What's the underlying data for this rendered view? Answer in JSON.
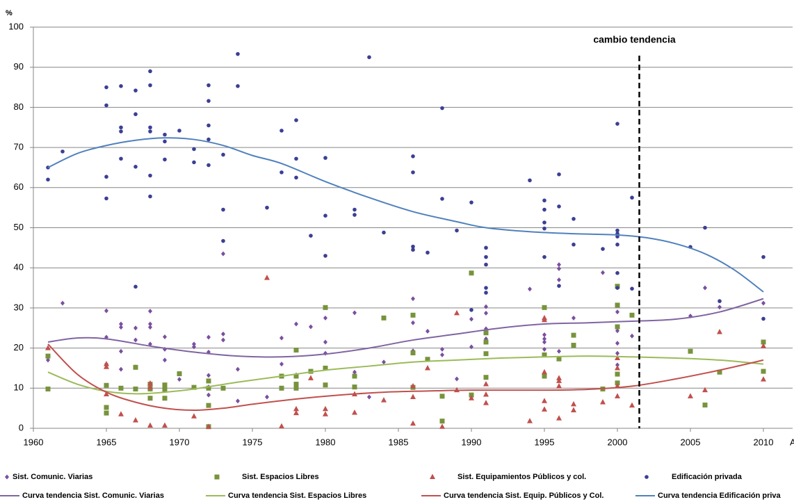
{
  "chart_data": {
    "type": "scatter",
    "ylabel": "%",
    "xlabel": "A",
    "xlim": [
      1960,
      2012
    ],
    "ylim": [
      0,
      100
    ],
    "xticks": [
      1960,
      1965,
      1970,
      1975,
      1980,
      1985,
      1990,
      1995,
      2000,
      2005,
      2010
    ],
    "yticks": [
      0,
      10,
      20,
      30,
      40,
      50,
      60,
      70,
      80,
      90,
      100
    ],
    "grid": true,
    "legend": "bottom",
    "annotation": {
      "text": "cambio tendencia",
      "x": 2001.5
    },
    "series": [
      {
        "name": "Sist. Comunic. Viarias",
        "kind": "scatter",
        "marker": "diamond",
        "color": "#7a4f9e",
        "x": [
          1961,
          1962,
          1965,
          1965,
          1965,
          1966,
          1966,
          1966,
          1966,
          1967,
          1967,
          1967,
          1968,
          1968,
          1968,
          1968,
          1969,
          1969,
          1969,
          1970,
          1971,
          1971,
          1972,
          1972,
          1972,
          1972,
          1972,
          1973,
          1973,
          1973,
          1974,
          1974,
          1976,
          1977,
          1977,
          1978,
          1978,
          1979,
          1980,
          1980,
          1980,
          1982,
          1982,
          1983,
          1984,
          1986,
          1986,
          1986,
          1986,
          1987,
          1988,
          1988,
          1989,
          1990,
          1990,
          1991,
          1991,
          1991,
          1991,
          1994,
          1995,
          1995,
          1995,
          1995,
          1996,
          1996,
          1996,
          1996,
          1997,
          1999,
          2000,
          2000,
          2000,
          2000,
          2000,
          2001,
          2005,
          2006,
          2007,
          2010
        ],
        "values": [
          17,
          31.2,
          29.3,
          22.7,
          16,
          25.2,
          26,
          19.2,
          14.7,
          25,
          22,
          15.3,
          29.2,
          26,
          25.2,
          21,
          22.8,
          19.7,
          17,
          12.2,
          21,
          20.3,
          22.7,
          19,
          13.2,
          10.3,
          8.3,
          23.5,
          22,
          43.5,
          14.7,
          6.8,
          7.8,
          22.5,
          16,
          26,
          13.3,
          25.3,
          27.5,
          21.5,
          18.7,
          28.8,
          14,
          7.8,
          16.5,
          32.3,
          26.3,
          19.3,
          10.5,
          24.2,
          19.7,
          18.3,
          12.3,
          27.2,
          20.3,
          30.3,
          28.7,
          24.8,
          22.3,
          34.7,
          23.3,
          22.3,
          21.5,
          19.7,
          40.8,
          39.8,
          37,
          19.2,
          27.5,
          38.8,
          29,
          24.3,
          21.2,
          18.7,
          15.8,
          23,
          28,
          35,
          30.2,
          31.2
        ]
      },
      {
        "name": "Sist. Espacios Libres",
        "kind": "scatter",
        "marker": "square",
        "color": "#77933c",
        "x": [
          1961,
          1961,
          1965,
          1965,
          1965,
          1966,
          1967,
          1967,
          1968,
          1968,
          1968,
          1969,
          1969,
          1969,
          1970,
          1971,
          1972,
          1972,
          1972,
          1972,
          1973,
          1977,
          1977,
          1978,
          1978,
          1978,
          1978,
          1979,
          1980,
          1980,
          1980,
          1982,
          1982,
          1984,
          1986,
          1986,
          1986,
          1987,
          1988,
          1988,
          1990,
          1990,
          1991,
          1991,
          1991,
          1991,
          1995,
          1995,
          1995,
          1996,
          1997,
          1997,
          1999,
          2000,
          2000,
          2000,
          2000,
          2000,
          2001,
          2005,
          2006,
          2007,
          2010,
          2010
        ],
        "values": [
          18,
          9.8,
          10.7,
          5.2,
          3.8,
          10,
          15.2,
          9.8,
          11,
          9.8,
          7.5,
          10.8,
          9.7,
          7.5,
          13.6,
          10.2,
          11.8,
          10,
          5.7,
          0.4,
          10,
          13,
          10,
          19.5,
          13,
          11,
          10,
          14.2,
          30.1,
          15,
          10.8,
          13,
          10.3,
          27.5,
          28.2,
          18.8,
          10.2,
          17.2,
          8,
          1.8,
          38.7,
          8.3,
          23.8,
          21.5,
          18.6,
          12.7,
          30.1,
          18.3,
          13,
          17.3,
          23.2,
          20.7,
          9.8,
          35.4,
          30.7,
          25.3,
          13.5,
          11.3,
          28.2,
          19.2,
          5.8,
          14,
          21.5,
          14.2
        ]
      },
      {
        "name": "Sist. Equipamientos Públicos y col.",
        "kind": "scatter",
        "marker": "triangle",
        "color": "#c0504d",
        "x": [
          1961,
          1965,
          1965,
          1965,
          1966,
          1967,
          1968,
          1968,
          1968,
          1969,
          1971,
          1972,
          1976,
          1977,
          1978,
          1978,
          1979,
          1980,
          1980,
          1982,
          1982,
          1984,
          1986,
          1986,
          1986,
          1987,
          1988,
          1989,
          1989,
          1990,
          1991,
          1991,
          1991,
          1994,
          1995,
          1995,
          1995,
          1995,
          1995,
          1996,
          1996,
          1996,
          1996,
          1997,
          1997,
          1999,
          2000,
          2000,
          2000,
          2000,
          2001,
          2005,
          2006,
          2007,
          2010,
          2010
        ],
        "values": [
          20,
          16,
          15.3,
          8.5,
          3.5,
          2,
          11.2,
          10.2,
          0.7,
          0.7,
          3,
          0.4,
          37.5,
          0.5,
          4.8,
          3.8,
          12.5,
          4.8,
          3.5,
          8.5,
          3.9,
          7,
          10.5,
          7.8,
          1.2,
          15,
          0.4,
          28.7,
          9.5,
          7.5,
          11,
          8.4,
          6.3,
          1.8,
          27.5,
          27,
          14,
          6.8,
          4.7,
          12.5,
          11.8,
          10.5,
          2.5,
          6,
          4.5,
          6.5,
          17.5,
          15,
          10.5,
          8,
          5.7,
          8,
          9.5,
          24,
          20.5,
          12.2
        ]
      },
      {
        "name": "Edificación privada",
        "kind": "scatter",
        "marker": "circle",
        "color": "#3b3f94",
        "x": [
          1961,
          1961,
          1962,
          1965,
          1965,
          1965,
          1965,
          1966,
          1966,
          1966,
          1966,
          1967,
          1967,
          1967,
          1967,
          1968,
          1968,
          1968,
          1968,
          1968,
          1968,
          1969,
          1969,
          1969,
          1970,
          1971,
          1971,
          1972,
          1972,
          1972,
          1972,
          1972,
          1973,
          1973,
          1973,
          1974,
          1974,
          1976,
          1977,
          1977,
          1978,
          1978,
          1978,
          1979,
          1980,
          1980,
          1980,
          1982,
          1982,
          1983,
          1984,
          1986,
          1986,
          1986,
          1986,
          1987,
          1988,
          1988,
          1989,
          1990,
          1990,
          1991,
          1991,
          1991,
          1991,
          1991,
          1994,
          1995,
          1995,
          1995,
          1995,
          1995,
          1996,
          1996,
          1996,
          1997,
          1997,
          1999,
          2000,
          2000,
          2000,
          2000,
          2000,
          2000,
          2000,
          2001,
          2001,
          2005,
          2006,
          2007,
          2010,
          2010
        ],
        "values": [
          65,
          62,
          69,
          85,
          80.5,
          62.7,
          57.3,
          85.3,
          75,
          74,
          67.2,
          84.2,
          78.3,
          65.2,
          35.3,
          89,
          85.5,
          75,
          74,
          63,
          57.8,
          73.2,
          71.5,
          67,
          74.2,
          69.6,
          66.3,
          85.5,
          81.6,
          75.5,
          72,
          65.6,
          68.2,
          54.5,
          46.7,
          93.3,
          85.3,
          55,
          74.2,
          63.8,
          76.8,
          67.2,
          62.5,
          48,
          67.4,
          53,
          43,
          54.5,
          53.2,
          92.5,
          48.8,
          67.8,
          63.8,
          45.3,
          44.5,
          43.8,
          79.8,
          57.2,
          49.3,
          56.3,
          29.5,
          45,
          42.7,
          40.8,
          35,
          33.8,
          61.8,
          56.8,
          54.5,
          51.3,
          49.8,
          42.7,
          63.3,
          55.3,
          35.5,
          52.2,
          45.8,
          44.7,
          75.9,
          49.3,
          48.5,
          47.8,
          45.8,
          38.7,
          35,
          57.5,
          34.8,
          45.2,
          50,
          31.7,
          42.7,
          27.3
        ]
      },
      {
        "name": "Curva tendencia Sist. Comunic. Viarias",
        "kind": "line",
        "color": "#8064a2",
        "x": [
          1961,
          1963,
          1965,
          1968,
          1971,
          1974,
          1977,
          1980,
          1983,
          1986,
          1989,
          1992,
          1995,
          1998,
          2001,
          2004,
          2007,
          2010
        ],
        "values": [
          21.5,
          22.5,
          22.3,
          20.5,
          19,
          18,
          17.8,
          18.5,
          20,
          22,
          23.5,
          25,
          26,
          26.3,
          26.7,
          27.2,
          29,
          32.3
        ]
      },
      {
        "name": "Curva tendencia Sist. Espacios Libres",
        "kind": "line",
        "color": "#9bbb59",
        "x": [
          1961,
          1963,
          1965,
          1967,
          1969,
          1971,
          1974,
          1977,
          1980,
          1983,
          1986,
          1989,
          1992,
          1995,
          1998,
          2001,
          2004,
          2007,
          2010
        ],
        "values": [
          14,
          11,
          9.2,
          8.6,
          9,
          9.8,
          11.5,
          13,
          14.5,
          15.5,
          16.5,
          17,
          17.5,
          17.8,
          18,
          17.8,
          17.5,
          17,
          16
        ]
      },
      {
        "name": "Curva tendencia Sist. Equip. Públicos y Col.",
        "kind": "line",
        "color": "#c0504d",
        "x": [
          1961,
          1963,
          1965,
          1967,
          1969,
          1971,
          1973,
          1975,
          1978,
          1981,
          1984,
          1987,
          1990,
          1995,
          1998,
          2001,
          2004,
          2007,
          2010
        ],
        "values": [
          21,
          13.5,
          9,
          6.5,
          5,
          4.5,
          5,
          6,
          7.3,
          8.3,
          9,
          9.3,
          9.5,
          9.5,
          9.7,
          10.5,
          12.3,
          14.5,
          17
        ]
      },
      {
        "name": "Curva tendencia Edificación priva",
        "kind": "line",
        "color": "#4f81bd",
        "x": [
          1961,
          1963,
          1965,
          1967,
          1969,
          1971,
          1973,
          1975,
          1977,
          1980,
          1983,
          1986,
          1989,
          1991,
          1994,
          1997,
          2000,
          2002,
          2004,
          2006,
          2008,
          2010
        ],
        "values": [
          65,
          68.5,
          70.5,
          71.8,
          72.4,
          72,
          70.5,
          68,
          66,
          61.5,
          57.5,
          54,
          51.5,
          50,
          49,
          48.5,
          48.2,
          47.5,
          46,
          43.5,
          39.5,
          34
        ]
      }
    ]
  }
}
